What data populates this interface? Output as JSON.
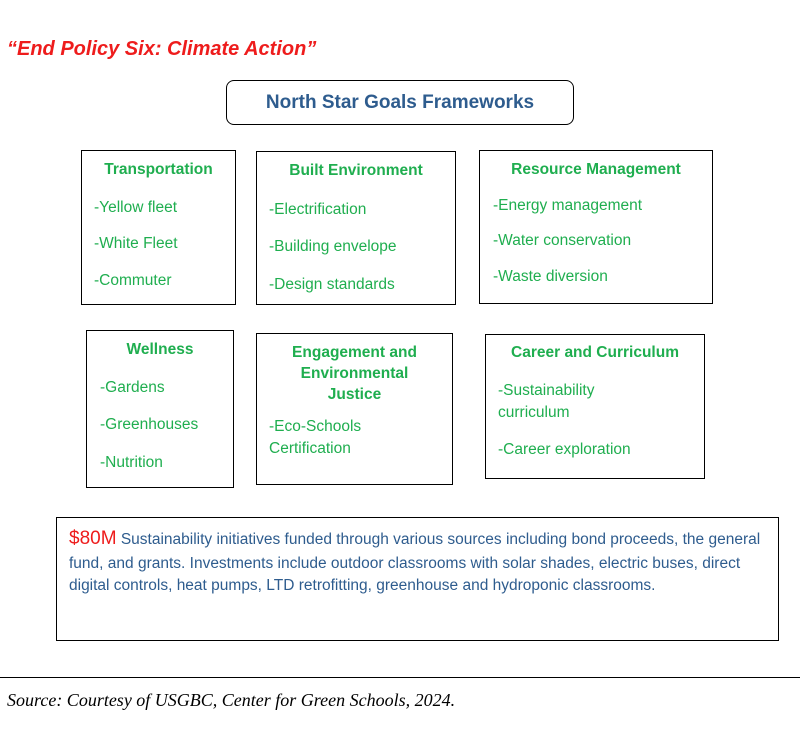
{
  "policy_title": "“End Policy Six: Climate Action”",
  "frameworks_title": "North Star Goals Frameworks",
  "boxes": [
    {
      "title": "Transportation",
      "items": [
        "-Yellow fleet",
        "-White Fleet",
        "-Commuter"
      ]
    },
    {
      "title": "Built Environment",
      "items": [
        "-Electrification",
        "-Building envelope",
        "-Design standards"
      ]
    },
    {
      "title": "Resource Management",
      "items": [
        "-Energy management",
        "-Water conservation",
        "-Waste diversion"
      ]
    },
    {
      "title": "Wellness",
      "items": [
        "-Gardens",
        "-Greenhouses",
        "-Nutrition"
      ]
    },
    {
      "title": "Engagement and Environmental Justice",
      "items": [
        "-Eco-Schools Certification"
      ]
    },
    {
      "title": "Career and Curriculum",
      "items": [
        "-Sustainability curriculum",
        "-Career exploration"
      ]
    }
  ],
  "summary": {
    "amount": "$80M",
    "text": " Sustainability initiatives funded through various sources including bond proceeds, the general fund, and grants. Investments include outdoor classrooms with solar shades, electric buses, direct digital controls, heat pumps, LTD retrofitting, greenhouse and hydroponic classrooms."
  },
  "source": "Source: Courtesy of USGBC, Center for Green Schools, 2024.",
  "colors": {
    "red": "#ee1c1c",
    "blue": "#2e5c8e",
    "green": "#1fae4f"
  }
}
